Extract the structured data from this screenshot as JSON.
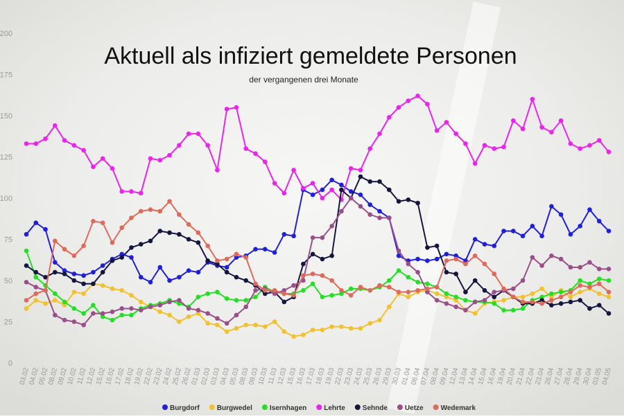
{
  "chart_data": {
    "type": "line",
    "title": "Aktuell als infiziert gemeldete Personen",
    "subtitle": "der vergangenen drei Monate",
    "categories": [
      "03.02",
      "04.02",
      "05.02",
      "08.02",
      "09.02",
      "10.02",
      "11.02",
      "12.02",
      "15.02",
      "16.02",
      "17.02",
      "18.02",
      "19.02",
      "22.02",
      "23.02",
      "24.02",
      "25.02",
      "26.02",
      "01.03",
      "02.03",
      "03.03",
      "04.03",
      "05.03",
      "08.03",
      "09.03",
      "10.03",
      "11.03",
      "12.03",
      "15.03",
      "16.03",
      "17.03",
      "18.03",
      "19.03",
      "22.03",
      "23.03",
      "24.03",
      "25.03",
      "26.03",
      "29.03",
      "30.03",
      "01.04",
      "06.04",
      "07.04",
      "08.04",
      "09.04",
      "12.04",
      "13.04",
      "14.04",
      "15.04",
      "16.04",
      "19.04",
      "20.04",
      "21.04",
      "22.04",
      "23.04",
      "26.04",
      "27.04",
      "28.04",
      "29.04",
      "30.04",
      "03.05",
      "04.05"
    ],
    "series": [
      {
        "name": "Burgdorf",
        "color": "#1f1fe0",
        "values": [
          78,
          85,
          81,
          61,
          56,
          54,
          53,
          55,
          59,
          63,
          66,
          64,
          52,
          49,
          58,
          50,
          52,
          56,
          55,
          61,
          59,
          58,
          64,
          65,
          69,
          69,
          67,
          78,
          77,
          105,
          102,
          105,
          111,
          108,
          104,
          102,
          96,
          92,
          88,
          65,
          62,
          63,
          62,
          63,
          66,
          65,
          62,
          75,
          72,
          71,
          80,
          80,
          77,
          83,
          77,
          95,
          90,
          78,
          83,
          93,
          86,
          80
        ]
      },
      {
        "name": "Burgwedel",
        "color": "#f2c12e",
        "values": [
          33,
          38,
          36,
          38,
          35,
          43,
          42,
          48,
          47,
          45,
          44,
          41,
          37,
          34,
          31,
          29,
          25,
          28,
          30,
          24,
          23,
          19,
          21,
          23,
          23,
          22,
          25,
          19,
          16,
          17,
          20,
          20,
          22,
          22,
          21,
          21,
          24,
          26,
          34,
          42,
          40,
          43,
          44,
          42,
          40,
          38,
          32,
          30,
          36,
          37,
          38,
          40,
          40,
          42,
          45,
          40,
          44,
          40,
          43,
          45,
          42,
          40
        ]
      },
      {
        "name": "Isernhagen",
        "color": "#22e022",
        "values": [
          68,
          52,
          47,
          42,
          37,
          33,
          30,
          35,
          28,
          26,
          29,
          29,
          33,
          35,
          36,
          38,
          36,
          34,
          40,
          42,
          43,
          39,
          38,
          38,
          40,
          46,
          43,
          42,
          42,
          44,
          48,
          40,
          41,
          42,
          45,
          45,
          44,
          46,
          50,
          56,
          52,
          49,
          48,
          46,
          42,
          40,
          38,
          37,
          37,
          36,
          32,
          32,
          33,
          38,
          40,
          42,
          43,
          44,
          50,
          48,
          51,
          50
        ]
      },
      {
        "name": "Lehrte",
        "color": "#ee22ee",
        "values": [
          133,
          133,
          136,
          144,
          135,
          132,
          129,
          119,
          124,
          118,
          104,
          104,
          103,
          124,
          123,
          126,
          132,
          139,
          139,
          132,
          117,
          154,
          155,
          130,
          127,
          122,
          109,
          103,
          117,
          106,
          109,
          100,
          105,
          99,
          118,
          117,
          130,
          139,
          149,
          155,
          159,
          162,
          157,
          141,
          146,
          139,
          133,
          121,
          132,
          130,
          131,
          147,
          142,
          160,
          143,
          140,
          147,
          133,
          130,
          132,
          135,
          128
        ]
      },
      {
        "name": "Sehnde",
        "color": "#15153f",
        "values": [
          59,
          55,
          52,
          55,
          54,
          50,
          48,
          48,
          55,
          62,
          64,
          70,
          72,
          74,
          80,
          79,
          78,
          75,
          73,
          62,
          60,
          55,
          52,
          50,
          47,
          42,
          43,
          37,
          40,
          60,
          66,
          63,
          65,
          105,
          100,
          113,
          110,
          110,
          105,
          98,
          99,
          97,
          70,
          71,
          55,
          54,
          43,
          50,
          44,
          40,
          44,
          40,
          36,
          36,
          38,
          35,
          36,
          37,
          38,
          33,
          35,
          30
        ]
      },
      {
        "name": "Uetze",
        "color": "#9b4f8a",
        "values": [
          49,
          46,
          44,
          29,
          26,
          25,
          23,
          30,
          30,
          31,
          33,
          33,
          32,
          34,
          35,
          37,
          38,
          33,
          32,
          30,
          27,
          24,
          29,
          34,
          44,
          45,
          42,
          44,
          47,
          50,
          76,
          76,
          83,
          92,
          100,
          95,
          90,
          88,
          88,
          68,
          60,
          55,
          43,
          38,
          36,
          34,
          32,
          37,
          38,
          43,
          44,
          45,
          50,
          64,
          59,
          65,
          63,
          58,
          58,
          61,
          57,
          57
        ]
      },
      {
        "name": "Wedemark",
        "color": "#e06a5a",
        "values": [
          38,
          42,
          44,
          74,
          69,
          65,
          71,
          86,
          85,
          73,
          82,
          88,
          92,
          93,
          92,
          98,
          90,
          84,
          79,
          71,
          62,
          63,
          66,
          64,
          48,
          44,
          44,
          42,
          41,
          53,
          54,
          53,
          50,
          44,
          41,
          46,
          44,
          47,
          46,
          43,
          43,
          44,
          45,
          46,
          62,
          63,
          60,
          65,
          60,
          54,
          45,
          40,
          37,
          37,
          36,
          38,
          40,
          43,
          47,
          46,
          48,
          43
        ]
      }
    ],
    "ylim": [
      0,
      200
    ],
    "yticks": [
      0,
      25,
      50,
      75,
      100,
      125,
      150,
      175,
      200
    ],
    "grid": false,
    "legend": "bottom"
  }
}
